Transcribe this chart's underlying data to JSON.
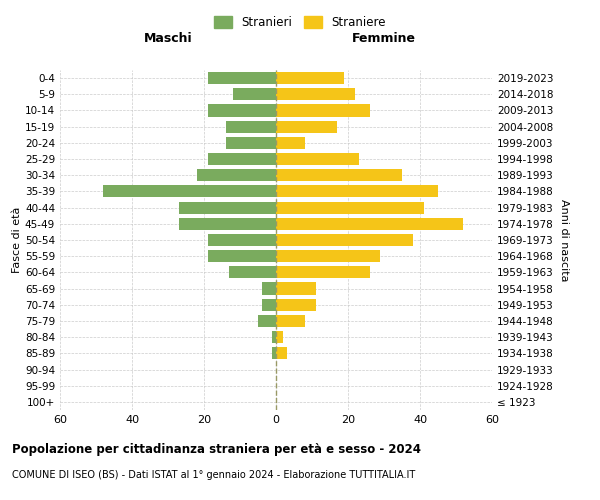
{
  "age_groups": [
    "100+",
    "95-99",
    "90-94",
    "85-89",
    "80-84",
    "75-79",
    "70-74",
    "65-69",
    "60-64",
    "55-59",
    "50-54",
    "45-49",
    "40-44",
    "35-39",
    "30-34",
    "25-29",
    "20-24",
    "15-19",
    "10-14",
    "5-9",
    "0-4"
  ],
  "birth_years": [
    "≤ 1923",
    "1924-1928",
    "1929-1933",
    "1934-1938",
    "1939-1943",
    "1944-1948",
    "1949-1953",
    "1954-1958",
    "1959-1963",
    "1964-1968",
    "1969-1973",
    "1974-1978",
    "1979-1983",
    "1984-1988",
    "1989-1993",
    "1994-1998",
    "1999-2003",
    "2004-2008",
    "2009-2013",
    "2014-2018",
    "2019-2023"
  ],
  "maschi": [
    0,
    0,
    0,
    1,
    1,
    5,
    4,
    4,
    13,
    19,
    19,
    27,
    27,
    48,
    22,
    19,
    14,
    14,
    19,
    12,
    19
  ],
  "femmine": [
    0,
    0,
    0,
    3,
    2,
    8,
    11,
    11,
    26,
    29,
    38,
    52,
    41,
    45,
    35,
    23,
    8,
    17,
    26,
    22,
    19
  ],
  "color_maschi": "#7aab5e",
  "color_femmine": "#f5c518",
  "color_center_line": "#999966",
  "title": "Popolazione per cittadinanza straniera per età e sesso - 2024",
  "subtitle": "COMUNE DI ISEO (BS) - Dati ISTAT al 1° gennaio 2024 - Elaborazione TUTTITALIA.IT",
  "xlabel_left": "Maschi",
  "xlabel_right": "Femmine",
  "ylabel_left": "Fasce di età",
  "ylabel_right": "Anni di nascita",
  "legend_maschi": "Stranieri",
  "legend_femmine": "Straniere",
  "xlim": 60,
  "background_color": "#ffffff",
  "grid_color": "#cccccc"
}
